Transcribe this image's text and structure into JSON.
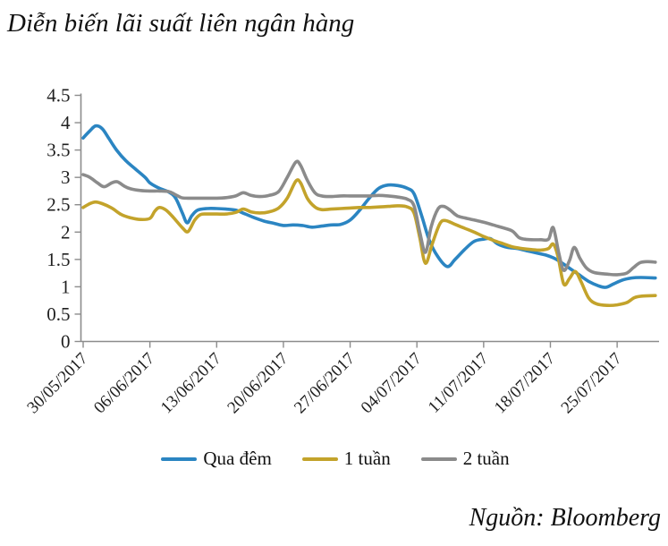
{
  "title": "Diễn biến lãi suất liên ngân hàng",
  "source": "Nguồn: Bloomberg",
  "colors": {
    "blue": "#2b85c2",
    "yellow": "#c3a32b",
    "gray": "#8b8b8b",
    "axis_line": "#8c8c8c",
    "tick_text": "#1f1f1f"
  },
  "legend": [
    {
      "label": "Qua đêm",
      "color": "#2b85c2"
    },
    {
      "label": "1 tuần",
      "color": "#c3a32b"
    },
    {
      "label": "2 tuần",
      "color": "#8b8b8b"
    }
  ],
  "chart_data": {
    "type": "line",
    "title": "Diễn biến lãi suất liên ngân hàng",
    "xlabel": "",
    "ylabel": "",
    "grid": false,
    "legend_position": "bottom",
    "ylim": [
      0,
      4.5
    ],
    "y_ticks": [
      0,
      0.5,
      1,
      1.5,
      2,
      2.5,
      3,
      3.5,
      4,
      4.5
    ],
    "x_domain_days": [
      0,
      60
    ],
    "x_tick_days": [
      0,
      7,
      14,
      21,
      28,
      35,
      42,
      49,
      56
    ],
    "x_tick_labels": [
      "30/05/2017",
      "06/06/2017",
      "13/06/2017",
      "20/06/2017",
      "27/06/2017",
      "04/07/2017",
      "11/07/2017",
      "18/07/2017",
      "25/07/2017"
    ],
    "series": [
      {
        "name": "Qua đêm",
        "color": "#2b85c2",
        "points": [
          [
            0,
            3.72
          ],
          [
            0.7,
            3.85
          ],
          [
            1.3,
            3.94
          ],
          [
            2,
            3.89
          ],
          [
            2.7,
            3.71
          ],
          [
            3.5,
            3.5
          ],
          [
            4.5,
            3.3
          ],
          [
            5.5,
            3.15
          ],
          [
            6.5,
            3.0
          ],
          [
            7,
            2.9
          ],
          [
            8,
            2.8
          ],
          [
            9,
            2.73
          ],
          [
            9.7,
            2.62
          ],
          [
            10.4,
            2.35
          ],
          [
            10.9,
            2.17
          ],
          [
            11.4,
            2.3
          ],
          [
            12,
            2.4
          ],
          [
            13,
            2.43
          ],
          [
            14,
            2.43
          ],
          [
            15,
            2.42
          ],
          [
            16,
            2.4
          ],
          [
            17,
            2.33
          ],
          [
            18,
            2.26
          ],
          [
            19,
            2.2
          ],
          [
            20,
            2.16
          ],
          [
            21,
            2.12
          ],
          [
            22,
            2.13
          ],
          [
            23,
            2.12
          ],
          [
            24,
            2.09
          ],
          [
            25,
            2.11
          ],
          [
            26,
            2.13
          ],
          [
            27,
            2.14
          ],
          [
            28,
            2.22
          ],
          [
            29,
            2.4
          ],
          [
            30,
            2.62
          ],
          [
            31,
            2.8
          ],
          [
            32,
            2.86
          ],
          [
            33,
            2.85
          ],
          [
            34,
            2.8
          ],
          [
            34.7,
            2.7
          ],
          [
            35.5,
            2.3
          ],
          [
            36.3,
            1.85
          ],
          [
            37.2,
            1.55
          ],
          [
            38.2,
            1.37
          ],
          [
            39,
            1.5
          ],
          [
            40,
            1.68
          ],
          [
            41,
            1.83
          ],
          [
            42,
            1.87
          ],
          [
            42.7,
            1.88
          ],
          [
            43.5,
            1.78
          ],
          [
            44.5,
            1.72
          ],
          [
            45.5,
            1.7
          ],
          [
            46.5,
            1.66
          ],
          [
            47.5,
            1.62
          ],
          [
            48.5,
            1.58
          ],
          [
            49.3,
            1.53
          ],
          [
            50,
            1.46
          ],
          [
            51,
            1.34
          ],
          [
            52,
            1.22
          ],
          [
            53,
            1.1
          ],
          [
            54,
            1.02
          ],
          [
            54.8,
            0.99
          ],
          [
            55.6,
            1.05
          ],
          [
            56.5,
            1.12
          ],
          [
            57.5,
            1.16
          ],
          [
            58.5,
            1.17
          ],
          [
            60,
            1.16
          ]
        ]
      },
      {
        "name": "1 tuần",
        "color": "#c3a32b",
        "points": [
          [
            0,
            2.45
          ],
          [
            0.7,
            2.52
          ],
          [
            1.3,
            2.55
          ],
          [
            2,
            2.52
          ],
          [
            3,
            2.44
          ],
          [
            4,
            2.32
          ],
          [
            5,
            2.26
          ],
          [
            6,
            2.23
          ],
          [
            7,
            2.25
          ],
          [
            7.5,
            2.38
          ],
          [
            8,
            2.45
          ],
          [
            8.7,
            2.4
          ],
          [
            9.5,
            2.26
          ],
          [
            10.4,
            2.08
          ],
          [
            11,
            2.01
          ],
          [
            11.7,
            2.22
          ],
          [
            12.3,
            2.32
          ],
          [
            13,
            2.33
          ],
          [
            14,
            2.33
          ],
          [
            15,
            2.33
          ],
          [
            16,
            2.36
          ],
          [
            16.8,
            2.42
          ],
          [
            17.6,
            2.37
          ],
          [
            18.5,
            2.35
          ],
          [
            19.5,
            2.37
          ],
          [
            20.5,
            2.44
          ],
          [
            21.4,
            2.62
          ],
          [
            22.3,
            2.93
          ],
          [
            22.8,
            2.9
          ],
          [
            23.5,
            2.62
          ],
          [
            24.3,
            2.46
          ],
          [
            25,
            2.41
          ],
          [
            26,
            2.42
          ],
          [
            27,
            2.43
          ],
          [
            28,
            2.44
          ],
          [
            29,
            2.45
          ],
          [
            30,
            2.45
          ],
          [
            31,
            2.46
          ],
          [
            32,
            2.47
          ],
          [
            33,
            2.48
          ],
          [
            34,
            2.46
          ],
          [
            34.7,
            2.35
          ],
          [
            35.3,
            1.9
          ],
          [
            35.9,
            1.43
          ],
          [
            36.6,
            1.78
          ],
          [
            37.4,
            2.15
          ],
          [
            38,
            2.21
          ],
          [
            39,
            2.14
          ],
          [
            40,
            2.07
          ],
          [
            41,
            2.0
          ],
          [
            42,
            1.92
          ],
          [
            43,
            1.85
          ],
          [
            44,
            1.79
          ],
          [
            45,
            1.73
          ],
          [
            46,
            1.7
          ],
          [
            47,
            1.68
          ],
          [
            48,
            1.67
          ],
          [
            48.8,
            1.7
          ],
          [
            49.3,
            1.78
          ],
          [
            49.8,
            1.55
          ],
          [
            50.4,
            1.05
          ],
          [
            51,
            1.15
          ],
          [
            51.6,
            1.28
          ],
          [
            52.2,
            1.1
          ],
          [
            53,
            0.8
          ],
          [
            53.8,
            0.69
          ],
          [
            55,
            0.66
          ],
          [
            56,
            0.67
          ],
          [
            57,
            0.71
          ],
          [
            57.8,
            0.8
          ],
          [
            58.6,
            0.83
          ],
          [
            60,
            0.84
          ]
        ]
      },
      {
        "name": "2 tuần",
        "color": "#8b8b8b",
        "points": [
          [
            0,
            3.05
          ],
          [
            0.7,
            3.0
          ],
          [
            1.5,
            2.9
          ],
          [
            2.2,
            2.83
          ],
          [
            3,
            2.9
          ],
          [
            3.6,
            2.92
          ],
          [
            4.3,
            2.84
          ],
          [
            5,
            2.79
          ],
          [
            6,
            2.76
          ],
          [
            7,
            2.75
          ],
          [
            8,
            2.75
          ],
          [
            9,
            2.74
          ],
          [
            9.6,
            2.69
          ],
          [
            10.3,
            2.63
          ],
          [
            11,
            2.62
          ],
          [
            12,
            2.62
          ],
          [
            13,
            2.62
          ],
          [
            14,
            2.62
          ],
          [
            15,
            2.63
          ],
          [
            16,
            2.66
          ],
          [
            16.8,
            2.72
          ],
          [
            17.6,
            2.67
          ],
          [
            18.5,
            2.65
          ],
          [
            19.5,
            2.67
          ],
          [
            20.5,
            2.74
          ],
          [
            21.4,
            3.0
          ],
          [
            22.3,
            3.28
          ],
          [
            22.8,
            3.22
          ],
          [
            23.5,
            2.95
          ],
          [
            24.3,
            2.72
          ],
          [
            25,
            2.66
          ],
          [
            26,
            2.65
          ],
          [
            27,
            2.66
          ],
          [
            28,
            2.66
          ],
          [
            29,
            2.66
          ],
          [
            30,
            2.66
          ],
          [
            31,
            2.67
          ],
          [
            32,
            2.66
          ],
          [
            33,
            2.64
          ],
          [
            34,
            2.6
          ],
          [
            34.7,
            2.48
          ],
          [
            35.3,
            2.0
          ],
          [
            35.9,
            1.63
          ],
          [
            36.5,
            2.1
          ],
          [
            37.2,
            2.42
          ],
          [
            37.8,
            2.47
          ],
          [
            38.5,
            2.4
          ],
          [
            39.2,
            2.3
          ],
          [
            40,
            2.26
          ],
          [
            41,
            2.22
          ],
          [
            42,
            2.18
          ],
          [
            43,
            2.13
          ],
          [
            44,
            2.08
          ],
          [
            45,
            2.02
          ],
          [
            45.7,
            1.9
          ],
          [
            46.3,
            1.87
          ],
          [
            47,
            1.86
          ],
          [
            48,
            1.86
          ],
          [
            48.8,
            1.87
          ],
          [
            49.3,
            2.08
          ],
          [
            49.9,
            1.6
          ],
          [
            50.4,
            1.3
          ],
          [
            51,
            1.48
          ],
          [
            51.5,
            1.72
          ],
          [
            52.1,
            1.52
          ],
          [
            52.8,
            1.34
          ],
          [
            53.6,
            1.26
          ],
          [
            55,
            1.23
          ],
          [
            56,
            1.22
          ],
          [
            57,
            1.25
          ],
          [
            57.7,
            1.35
          ],
          [
            58.4,
            1.44
          ],
          [
            59.2,
            1.46
          ],
          [
            60,
            1.45
          ]
        ]
      }
    ]
  }
}
